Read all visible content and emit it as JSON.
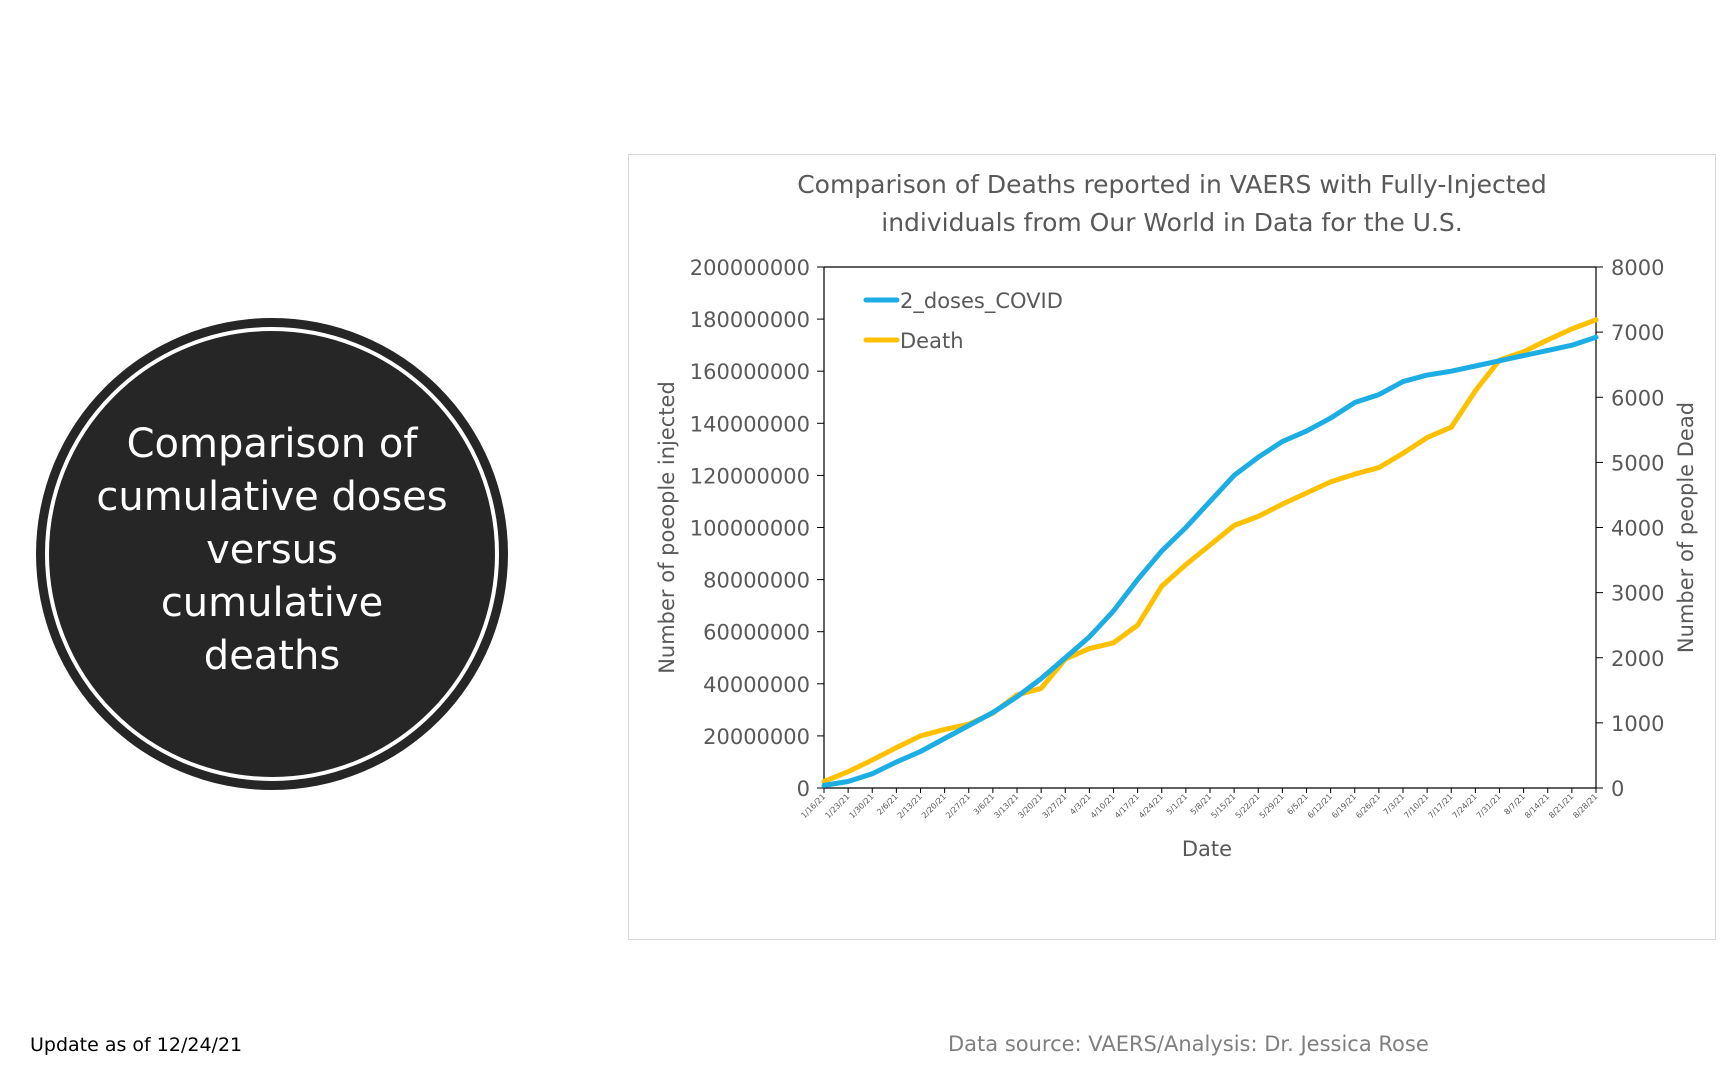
{
  "slide": {
    "circle_text": "Comparison of cumulative doses versus cumulative deaths",
    "footer_update": "Update as of 12/24/21",
    "footer_source": "Data source: VAERS/Analysis: Dr. Jessica Rose"
  },
  "colors": {
    "circle_fill": "#262626",
    "doses_line": "#1CADE4",
    "death_line": "#FFC000",
    "axis_text": "#595959"
  },
  "chart_data": {
    "type": "line",
    "title": [
      "Comparison of Deaths reported in VAERS with Fully-Injected",
      "individuals from Our World in Data for the U.S."
    ],
    "xlabel": "Date",
    "ylabel_left": "Number of poeople injected",
    "ylabel_right": "Number of people Dead",
    "ylim_left": [
      0,
      200000000
    ],
    "ylim_right": [
      0,
      8000
    ],
    "yticks_left": [
      "0",
      "20000000",
      "40000000",
      "60000000",
      "80000000",
      "100000000",
      "120000000",
      "140000000",
      "160000000",
      "180000000",
      "200000000"
    ],
    "yticks_right": [
      "0",
      "1000",
      "2000",
      "3000",
      "4000",
      "5000",
      "6000",
      "7000",
      "8000"
    ],
    "x": [
      "1/16/21",
      "1/23/21",
      "1/30/21",
      "2/6/21",
      "2/13/21",
      "2/20/21",
      "2/27/21",
      "3/6/21",
      "3/13/21",
      "3/20/21",
      "3/27/21",
      "4/3/21",
      "4/10/21",
      "4/17/21",
      "4/24/21",
      "5/1/21",
      "5/8/21",
      "5/15/21",
      "5/22/21",
      "5/29/21",
      "6/5/21",
      "6/12/21",
      "6/19/21",
      "6/26/21",
      "7/3/21",
      "7/10/21",
      "7/17/21",
      "7/24/21",
      "7/31/21",
      "8/7/21",
      "8/14/21",
      "8/21/21",
      "8/28/21"
    ],
    "grid": false,
    "legend_position": "top-left",
    "series": [
      {
        "name": "2_doses_COVID",
        "axis": "left",
        "color": "#1CADE4",
        "values": [
          1000000,
          2500000,
          5500000,
          10000000,
          14000000,
          19000000,
          24000000,
          29000000,
          35000000,
          42000000,
          50000000,
          58000000,
          68000000,
          80000000,
          91000000,
          100000000,
          110000000,
          120000000,
          127000000,
          133000000,
          137000000,
          142000000,
          148000000,
          151000000,
          156000000,
          158500000,
          160000000,
          162000000,
          164000000,
          166000000,
          168000000,
          170000000,
          173000000
        ]
      },
      {
        "name": "Death",
        "axis": "right",
        "color": "#FFC000",
        "values": [
          100,
          250,
          430,
          620,
          800,
          900,
          980,
          1150,
          1430,
          1530,
          1980,
          2140,
          2230,
          2500,
          3100,
          3430,
          3730,
          4030,
          4170,
          4360,
          4530,
          4700,
          4820,
          4920,
          5140,
          5380,
          5540,
          6100,
          6570,
          6700,
          6880,
          7050,
          7190
        ]
      }
    ]
  }
}
